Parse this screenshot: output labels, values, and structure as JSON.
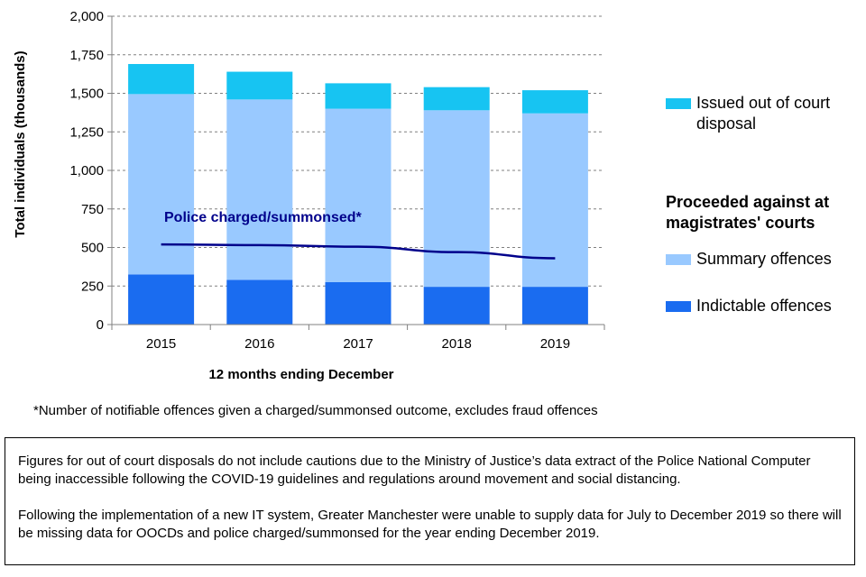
{
  "chart_data": {
    "type": "bar",
    "stacked": true,
    "categories": [
      "2015",
      "2016",
      "2017",
      "2018",
      "2019"
    ],
    "series": [
      {
        "name": "Indictable offences",
        "color": "#1a6cf0",
        "values": [
          325,
          290,
          275,
          245,
          245
        ]
      },
      {
        "name": "Summary offences",
        "color": "#99c9ff",
        "values": [
          1170,
          1170,
          1125,
          1145,
          1125
        ]
      },
      {
        "name": "Issued out of court disposal",
        "color": "#17c4f2",
        "values": [
          195,
          180,
          165,
          150,
          150
        ]
      }
    ],
    "line_series": {
      "name": "Police charged/summonsed*",
      "color": "#00008b",
      "values": [
        520,
        515,
        505,
        470,
        430
      ]
    },
    "ylim": [
      0,
      2000
    ],
    "yticks": [
      0,
      250,
      500,
      750,
      1000,
      1250,
      1500,
      1750,
      2000
    ],
    "ytick_labels": [
      "0",
      "250",
      "500",
      "750",
      "1,000",
      "1,250",
      "1,500",
      "1,750",
      "2,000"
    ],
    "ylabel": "Total individuals  (thousands)",
    "xlabel": "12 months ending December",
    "grid": true
  },
  "legend": {
    "ooc_label": "Issued out of court disposal",
    "heading": "Proceeded against at magistrates' courts",
    "summary_label": "Summary offences",
    "indictable_label": "Indictable offences"
  },
  "footnote": "*Number of notifiable offences given a charged/summonsed outcome, excludes fraud offences",
  "notes": {
    "para1": "Figures for out of court disposals do not include cautions due to the Ministry of Justice’s data extract of the Police National Computer being inaccessible following the COVID-19 guidelines and regulations around movement and social distancing.",
    "para2": "Following the implementation of a new IT system, Greater Manchester were unable to supply data for July to December 2019 so there will be missing data for OOCDs and police charged/summonsed for the year ending December 2019."
  }
}
